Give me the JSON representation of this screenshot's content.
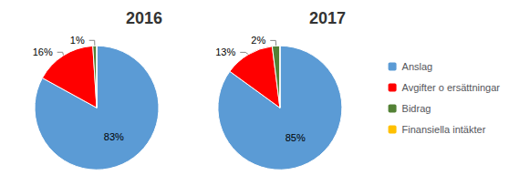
{
  "chart_data": [
    {
      "type": "pie",
      "title": "2016",
      "categories": [
        "Anslag",
        "Avgifter o ersättningar",
        "Bidrag",
        "Finansiella intäkter"
      ],
      "values": [
        83,
        16,
        1,
        0
      ],
      "value_labels": [
        "83%",
        "16%",
        "1%",
        null
      ],
      "colors": [
        "#5B9BD5",
        "#FF0000",
        "#538135",
        "#FFC000"
      ],
      "data_labels": true,
      "legend": "right"
    },
    {
      "type": "pie",
      "title": "2017",
      "categories": [
        "Anslag",
        "Avgifter o ersättningar",
        "Bidrag",
        "Finansiella intäkter"
      ],
      "values": [
        85,
        13,
        2,
        0
      ],
      "value_labels": [
        "85%",
        "13%",
        "2%",
        null
      ],
      "colors": [
        "#5B9BD5",
        "#FF0000",
        "#538135",
        "#FFC000"
      ],
      "data_labels": true,
      "legend": "right"
    }
  ]
}
